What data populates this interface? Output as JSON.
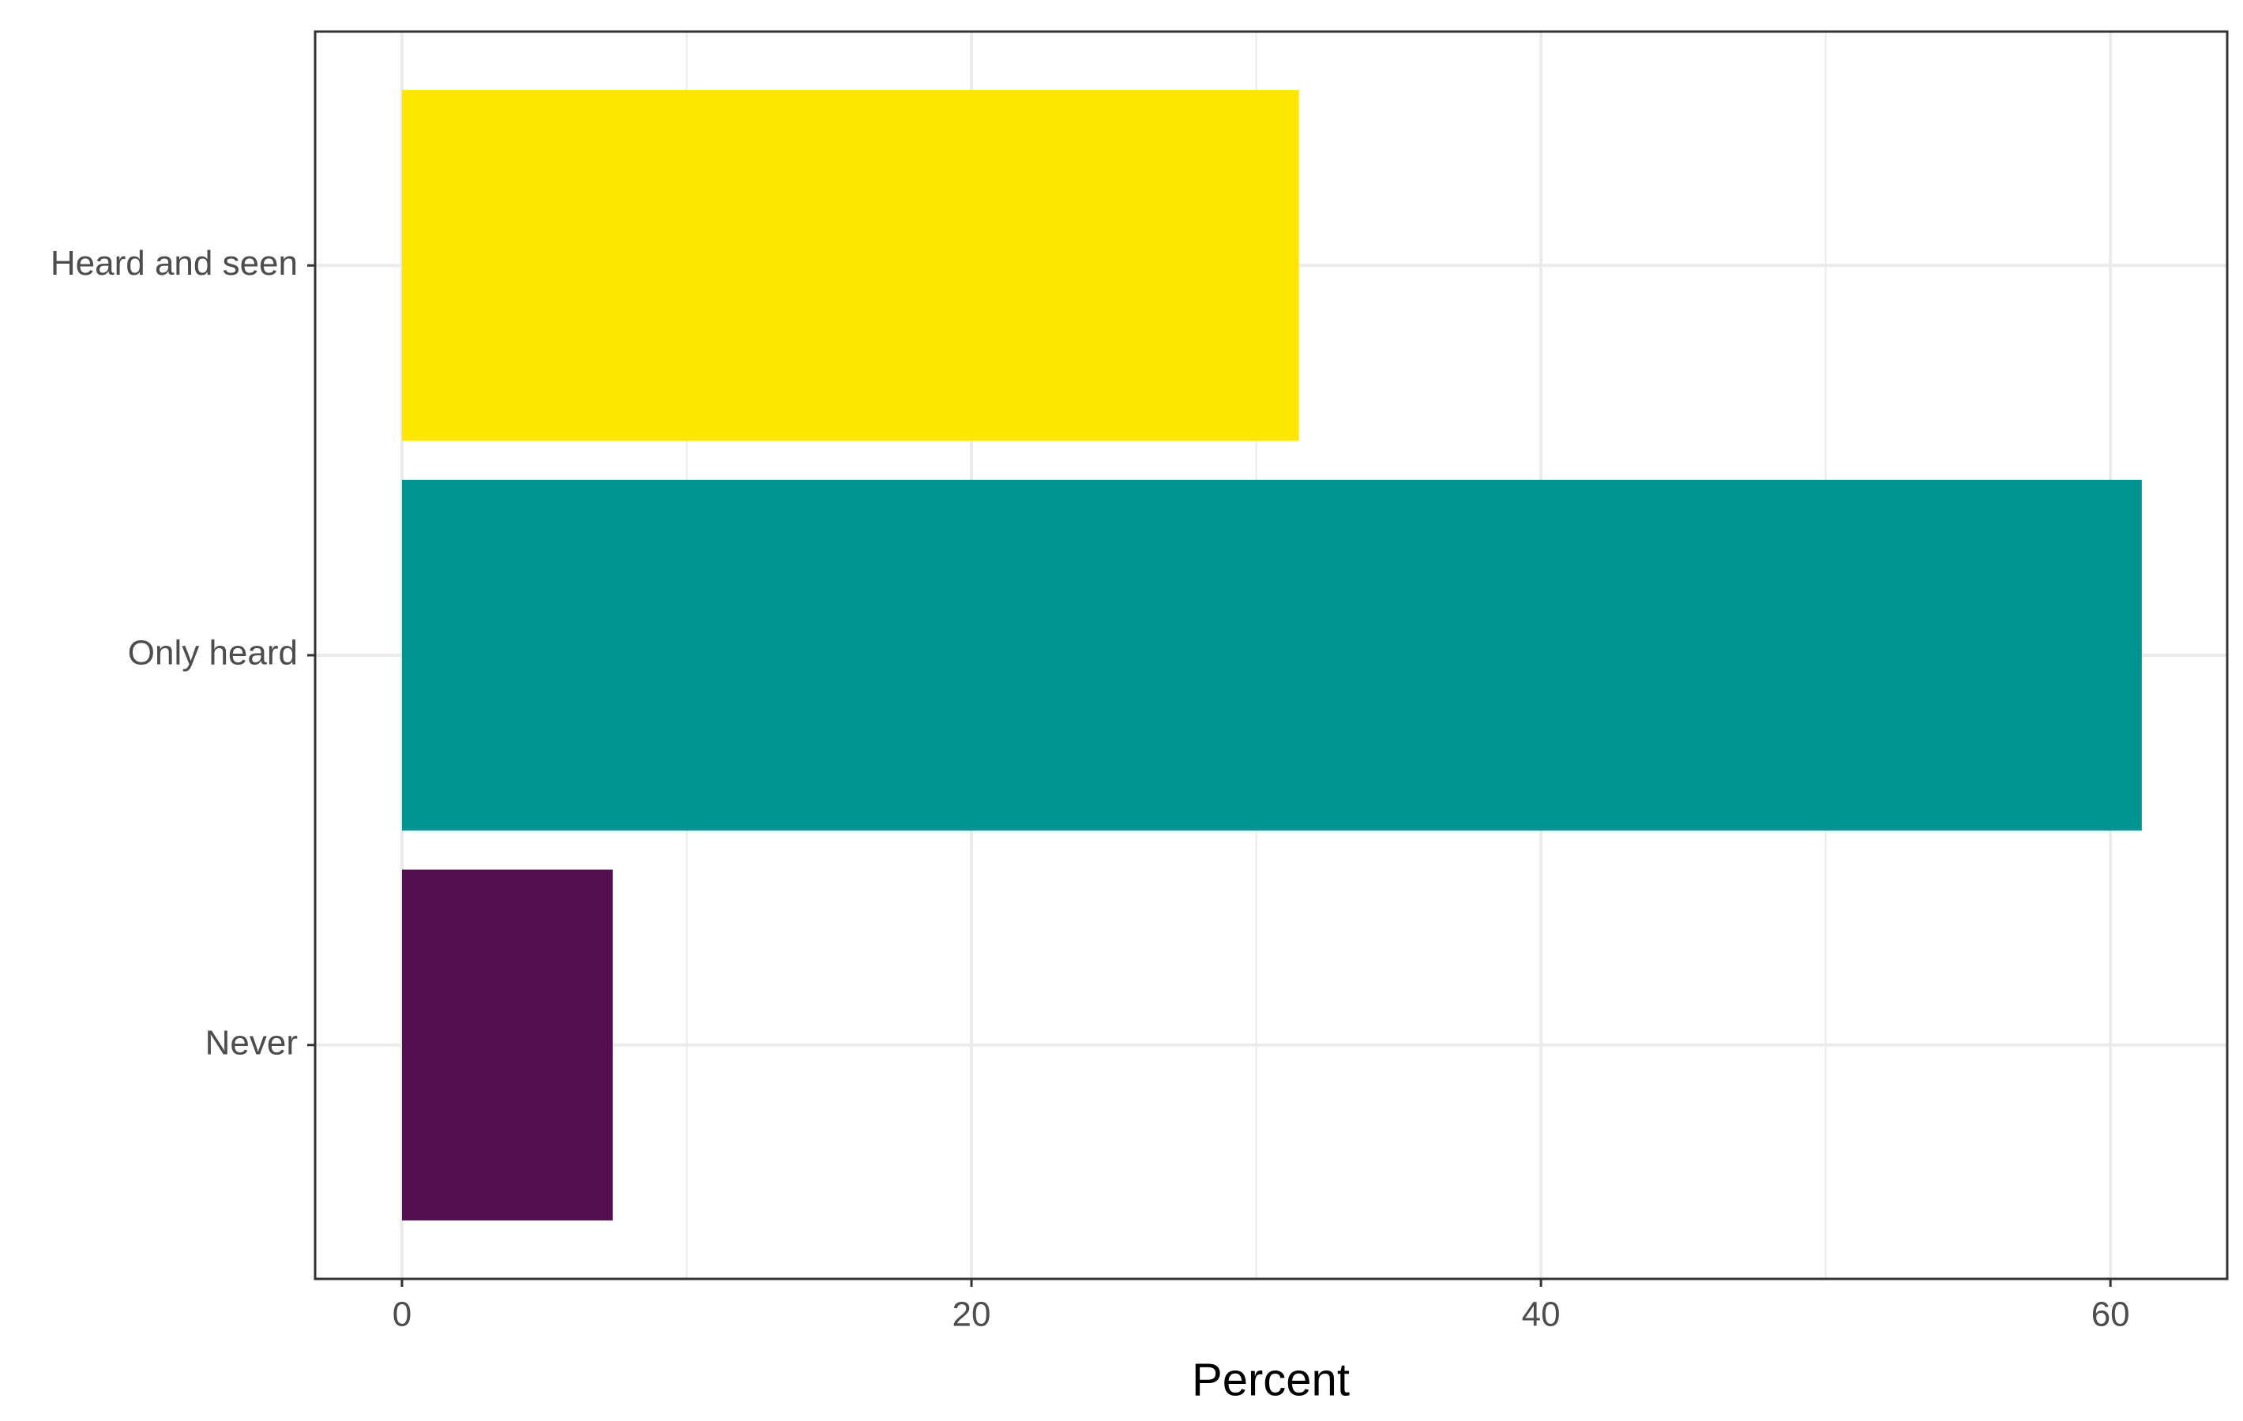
{
  "chart_data": {
    "type": "bar",
    "orientation": "horizontal",
    "categories": [
      "Never",
      "Only heard",
      "Heard and seen"
    ],
    "values": [
      7.4,
      61.1,
      31.5
    ],
    "colors": [
      "#540d4e",
      "#00948f",
      "#fde600"
    ],
    "x_label": "Percent",
    "xlim": [
      -3.05,
      64.1
    ],
    "xticks": [
      0,
      20,
      40,
      60
    ],
    "x_minor_grid": [
      10,
      30,
      50
    ],
    "grid": true
  }
}
